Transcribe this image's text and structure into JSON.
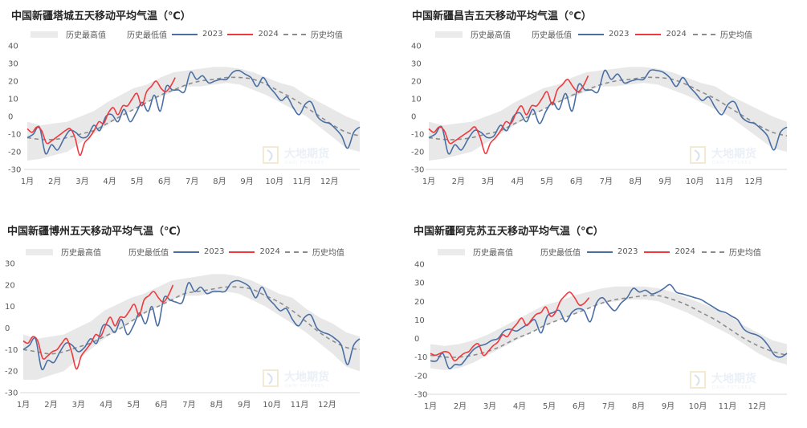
{
  "legend": {
    "hist_max": "历史最高值",
    "hist_min": "历史最低值",
    "y2023": "2023",
    "y2024": "2024",
    "hist_avg": "历史均值"
  },
  "colors": {
    "band": "#e8e8e8",
    "y2023": "#4a6fa5",
    "y2024": "#f0393d",
    "avg": "#8c8c8c",
    "axis": "#d9d9d9",
    "watermark": "#dbe4f0"
  },
  "watermark": {
    "cn": "大地期货",
    "en": "DADI FUTURES"
  },
  "chart_data": [
    {
      "type": "line",
      "title": "中国新疆塔城五天移动平均气温（℃）",
      "xlabel": "",
      "ylabel": "",
      "ylim": [
        -30,
        40
      ],
      "yticks": [
        40,
        30,
        20,
        10,
        0,
        -10,
        -20,
        -30
      ],
      "categories": [
        "1月",
        "2月",
        "3月",
        "4月",
        "5月",
        "6月",
        "7月",
        "8月",
        "9月",
        "10月",
        "11月",
        "12月"
      ],
      "legend_position": "top",
      "grid": false,
      "series": [
        {
          "name": "历史最高值",
          "values": [
            -3,
            -5,
            -4,
            -3,
            0,
            3,
            8,
            12,
            16,
            18,
            22,
            25,
            26,
            27,
            28,
            28,
            27,
            25,
            22,
            19,
            17,
            12,
            8,
            4,
            0,
            -3
          ]
        },
        {
          "name": "历史最低值",
          "values": [
            -25,
            -24,
            -22,
            -20,
            -15,
            -10,
            -5,
            0,
            4,
            8,
            11,
            14,
            17,
            17,
            18,
            19,
            18,
            15,
            12,
            8,
            4,
            0,
            -6,
            -12,
            -18,
            -20
          ]
        },
        {
          "name": "2023",
          "values": [
            -12,
            -10,
            -6,
            -21,
            -16,
            -19,
            -13,
            -8,
            -9,
            -12,
            -11,
            -5,
            -8,
            0,
            1,
            -3,
            4,
            -3,
            2,
            8,
            3,
            12,
            3,
            17,
            15,
            15,
            14,
            25,
            21,
            23,
            19,
            20,
            21,
            21,
            25,
            26,
            24,
            22,
            17,
            22,
            17,
            13,
            9,
            11,
            5,
            1,
            7,
            8,
            0,
            -3,
            -4,
            -7,
            -11,
            -18,
            -9,
            -6
          ]
        },
        {
          "name": "2024",
          "values": [
            -7,
            -9,
            -6,
            -8,
            -15,
            -14,
            -12,
            -10,
            -8,
            -7,
            -12,
            -22,
            -15,
            -12,
            -8,
            -3,
            -4,
            2,
            5,
            1,
            6,
            6,
            10,
            13,
            6,
            14,
            17,
            20,
            16,
            14,
            17,
            22
          ]
        },
        {
          "name": "历史均值",
          "values": [
            -12,
            -13,
            -13,
            -12,
            -10,
            -8,
            -4,
            0,
            4,
            8,
            12,
            15,
            18,
            20,
            21,
            22,
            22,
            21,
            18,
            14,
            10,
            5,
            0,
            -5,
            -9,
            -11
          ]
        }
      ]
    },
    {
      "type": "line",
      "title": "中国新疆昌吉五天移动平均气温（℃）",
      "xlabel": "",
      "ylabel": "",
      "ylim": [
        -30,
        40
      ],
      "yticks": [
        40,
        30,
        20,
        10,
        0,
        -10,
        -20,
        -30
      ],
      "categories": [
        "1月",
        "2月",
        "3月",
        "4月",
        "5月",
        "6月",
        "7月",
        "8月",
        "9月",
        "10月",
        "11月",
        "12月"
      ],
      "legend_position": "top",
      "grid": false,
      "series": [
        {
          "name": "历史最高值",
          "values": [
            -3,
            -5,
            -4,
            -3,
            0,
            3,
            8,
            12,
            16,
            18,
            22,
            25,
            26,
            27,
            28,
            28,
            27,
            25,
            22,
            19,
            17,
            12,
            8,
            4,
            0,
            -3
          ]
        },
        {
          "name": "历史最低值",
          "values": [
            -25,
            -24,
            -22,
            -20,
            -15,
            -10,
            -5,
            0,
            4,
            8,
            11,
            14,
            17,
            17,
            18,
            19,
            18,
            15,
            12,
            8,
            4,
            0,
            -6,
            -12,
            -18,
            -20
          ]
        },
        {
          "name": "2023",
          "values": [
            -12,
            -10,
            -6,
            -21,
            -16,
            -19,
            -13,
            -8,
            -9,
            -12,
            -11,
            -5,
            -8,
            0,
            2,
            -3,
            4,
            -4,
            3,
            8,
            4,
            13,
            3,
            18,
            15,
            15,
            14,
            26,
            21,
            24,
            19,
            20,
            21,
            21,
            26,
            26,
            25,
            22,
            17,
            22,
            17,
            13,
            9,
            11,
            5,
            1,
            7,
            8,
            0,
            -3,
            -4,
            -7,
            -11,
            -19,
            -9,
            -6
          ]
        },
        {
          "name": "2024",
          "values": [
            -7,
            -9,
            -6,
            -8,
            -15,
            -14,
            -12,
            -10,
            -8,
            -6,
            -12,
            -21,
            -15,
            -12,
            -8,
            -3,
            -4,
            2,
            6,
            1,
            6,
            6,
            10,
            14,
            7,
            15,
            18,
            21,
            17,
            14,
            17,
            23
          ]
        },
        {
          "name": "历史均值",
          "values": [
            -12,
            -13,
            -13,
            -12,
            -10,
            -8,
            -4,
            0,
            4,
            8,
            12,
            15,
            18,
            20,
            21,
            22,
            22,
            21,
            18,
            14,
            10,
            5,
            0,
            -5,
            -9,
            -11
          ]
        }
      ]
    },
    {
      "type": "line",
      "title": "中国新疆博州五天移动平均气温（℃）",
      "xlabel": "",
      "ylabel": "",
      "ylim": [
        -30,
        30
      ],
      "yticks": [
        30,
        20,
        10,
        0,
        -10,
        -20,
        -30
      ],
      "categories": [
        "1月",
        "2月",
        "3月",
        "4月",
        "5月",
        "6月",
        "7月",
        "8月",
        "9月",
        "10月",
        "11月",
        "12月"
      ],
      "legend_position": "top",
      "grid": false,
      "series": [
        {
          "name": "历史最高值",
          "values": [
            -3,
            -5,
            -4,
            -3,
            0,
            3,
            8,
            11,
            14,
            16,
            19,
            22,
            23,
            24,
            25,
            25,
            24,
            22,
            19,
            16,
            14,
            9,
            5,
            2,
            -2,
            -4
          ]
        },
        {
          "name": "历史最低值",
          "values": [
            -24,
            -24,
            -22,
            -20,
            -15,
            -10,
            -5,
            -1,
            3,
            7,
            10,
            13,
            15,
            15,
            16,
            17,
            16,
            13,
            10,
            6,
            2,
            -2,
            -7,
            -12,
            -18,
            -20
          ]
        },
        {
          "name": "2023",
          "values": [
            -10,
            -8,
            -5,
            -19,
            -15,
            -16,
            -11,
            -7,
            -8,
            -11,
            -9,
            -5,
            -7,
            1,
            1,
            -2,
            4,
            -3,
            1,
            7,
            2,
            10,
            1,
            14,
            13,
            12,
            12,
            21,
            17,
            19,
            16,
            17,
            17,
            17,
            21,
            22,
            21,
            19,
            14,
            19,
            14,
            11,
            8,
            9,
            4,
            1,
            5,
            6,
            0,
            -2,
            -3,
            -5,
            -8,
            -17,
            -8,
            -5
          ]
        },
        {
          "name": "2024",
          "values": [
            -6,
            -7,
            -4,
            -6,
            -14,
            -13,
            -11,
            -10,
            -7,
            -5,
            -11,
            -19,
            -13,
            -10,
            -7,
            -3,
            -4,
            1,
            5,
            1,
            5,
            5,
            8,
            11,
            6,
            13,
            15,
            17,
            14,
            12,
            15,
            20
          ]
        },
        {
          "name": "历史均值",
          "values": [
            -10,
            -11,
            -12,
            -11,
            -9,
            -7,
            -4,
            -1,
            3,
            7,
            10,
            13,
            16,
            17,
            18,
            19,
            19,
            18,
            15,
            12,
            8,
            3,
            -2,
            -6,
            -9,
            -10
          ]
        }
      ]
    },
    {
      "type": "line",
      "title": "中国新疆阿克苏五天移动平均气温（℃）",
      "xlabel": "",
      "ylabel": "",
      "ylim": [
        -30,
        40
      ],
      "yticks": [
        40,
        30,
        20,
        10,
        0,
        -10,
        -20,
        -30
      ],
      "categories": [
        "1月",
        "2月",
        "3月",
        "4月",
        "5月",
        "6月",
        "7月",
        "8月",
        "9月",
        "10月",
        "11月",
        "12月"
      ],
      "legend_position": "top",
      "grid": false,
      "series": [
        {
          "name": "历史最高值",
          "values": [
            -3,
            -4,
            -3,
            -1,
            2,
            6,
            10,
            14,
            18,
            20,
            23,
            25,
            27,
            28,
            28,
            28,
            27,
            25,
            22,
            19,
            16,
            12,
            7,
            3,
            -1,
            -3
          ]
        },
        {
          "name": "历史最低值",
          "values": [
            -16,
            -17,
            -16,
            -13,
            -9,
            -5,
            -1,
            3,
            7,
            10,
            13,
            16,
            19,
            20,
            21,
            21,
            20,
            17,
            14,
            10,
            6,
            2,
            -3,
            -8,
            -12,
            -14
          ]
        },
        {
          "name": "2023",
          "values": [
            -12,
            -12,
            -8,
            -16,
            -14,
            -14,
            -10,
            -6,
            -4,
            -3,
            -1,
            0,
            4,
            5,
            4,
            6,
            8,
            10,
            3,
            12,
            14,
            15,
            9,
            14,
            16,
            15,
            9,
            19,
            22,
            18,
            15,
            19,
            22,
            27,
            25,
            26,
            24,
            25,
            27,
            29,
            25,
            24,
            23,
            22,
            21,
            19,
            17,
            15,
            14,
            12,
            10,
            5,
            3,
            2,
            0,
            -4,
            -9,
            -10,
            -8
          ]
        },
        {
          "name": "2024",
          "values": [
            -8,
            -9,
            -8,
            -7,
            -8,
            -12,
            -10,
            -8,
            -7,
            -4,
            -3,
            -9,
            -7,
            -4,
            -2,
            2,
            1,
            5,
            8,
            11,
            7,
            10,
            13,
            14,
            17,
            12,
            14,
            20,
            23,
            25,
            22,
            18,
            19,
            22
          ]
        },
        {
          "name": "历史均值",
          "values": [
            -9,
            -10,
            -10,
            -9,
            -7,
            -4,
            0,
            3,
            7,
            10,
            13,
            16,
            19,
            21,
            22,
            23,
            23,
            21,
            18,
            14,
            10,
            5,
            0,
            -4,
            -7,
            -9
          ]
        }
      ]
    }
  ]
}
